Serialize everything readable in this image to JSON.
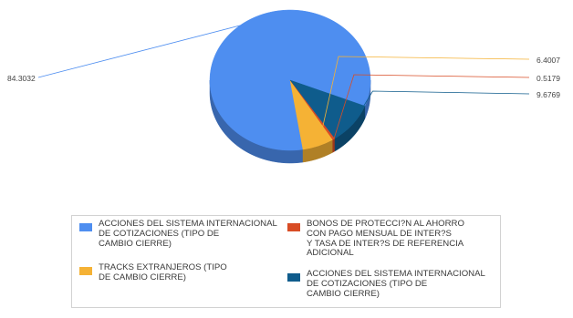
{
  "chart_data": {
    "type": "pie",
    "style": "3d",
    "slices": [
      {
        "label": "ACCIONES DEL SISTEMA INTERNACIONAL\nDE COTIZACIONES (TIPO DE\nCAMBIO CIERRE)",
        "value": 84.3032,
        "value_label": "84.3032",
        "color": "#4e8ef0"
      },
      {
        "label": "TRACKS EXTRANJEROS (TIPO\nDE CAMBIO CIERRE)",
        "value": 6.4007,
        "value_label": "6.4007",
        "color": "#f5b235"
      },
      {
        "label": "BONOS DE PROTECCI?N AL AHORRO\nCON PAGO MENSUAL DE INTER?S\nY TASA DE INTER?S DE REFERENCIA\nADICIONAL",
        "value": 0.5179,
        "value_label": "0.5179",
        "color": "#d84c25"
      },
      {
        "label": "ACCIONES DEL SISTEMA INTERNACIONAL\nDE COTIZACIONES (TIPO DE\nCAMBIO CIERRE)",
        "value": 9.6769,
        "value_label": "9.6769",
        "color": "#0f5c8c"
      }
    ],
    "legend_position": "bottom"
  }
}
